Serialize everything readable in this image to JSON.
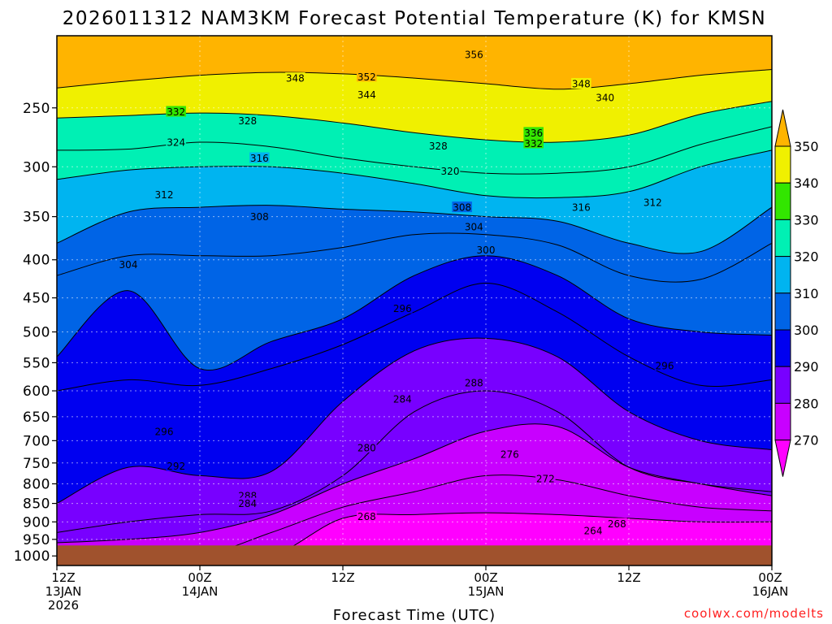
{
  "chart_data": {
    "type": "heatmap",
    "title": "2026011312 NAM3KM Forecast Potential Temperature (K) for KMSN",
    "xlabel": "Forecast Time (UTC)",
    "ylabel": "",
    "x_ticks": [
      {
        "hours": 0,
        "lines": [
          "12Z",
          "13JAN",
          "2026"
        ]
      },
      {
        "hours": 12,
        "lines": [
          "00Z",
          "14JAN"
        ]
      },
      {
        "hours": 24,
        "lines": [
          "12Z"
        ]
      },
      {
        "hours": 36,
        "lines": [
          "00Z",
          "15JAN"
        ]
      },
      {
        "hours": 48,
        "lines": [
          "12Z"
        ]
      },
      {
        "hours": 60,
        "lines": [
          "00Z",
          "16JAN"
        ]
      }
    ],
    "xlim_hours": [
      0,
      60
    ],
    "y_ticks": [
      250,
      300,
      350,
      400,
      450,
      500,
      550,
      600,
      650,
      700,
      750,
      800,
      850,
      900,
      950,
      1000
    ],
    "ylim_hpa": [
      200,
      1030
    ],
    "y_scale": "log-pressure",
    "terrain_surface_hpa": 968,
    "grid": true,
    "colorbar": {
      "levels": [
        "270",
        "280",
        "290",
        "300",
        "310",
        "320",
        "330",
        "340",
        "350"
      ],
      "colors": [
        "#ff00ff",
        "#c800ff",
        "#7800ff",
        "#0000f0",
        "#0064e6",
        "#00b4f0",
        "#00f0b4",
        "#32e600",
        "#f0f000",
        "#ffb400"
      ]
    },
    "isentropes": [
      {
        "theta": 348,
        "p": [
          235,
          230,
          226,
          224,
          225,
          228,
          232,
          236,
          232,
          226,
          222
        ]
      },
      {
        "theta": 332,
        "p": [
          258,
          256,
          254,
          256,
          262,
          270,
          276,
          278,
          272,
          255,
          245
        ]
      },
      {
        "theta": 324,
        "p": [
          285,
          284,
          278,
          282,
          292,
          300,
          306,
          306,
          300,
          280,
          265
        ]
      },
      {
        "theta": 316,
        "p": [
          312,
          303,
          300,
          300,
          306,
          316,
          328,
          330,
          324,
          300,
          285
        ]
      },
      {
        "theta": 308,
        "p": [
          380,
          345,
          340,
          338,
          342,
          345,
          350,
          355,
          380,
          390,
          340
        ]
      },
      {
        "theta": 304,
        "p": [
          420,
          395,
          395,
          395,
          385,
          370,
          370,
          382,
          420,
          425,
          380
        ]
      },
      {
        "theta": 300,
        "p": [
          540,
          440,
          560,
          515,
          480,
          420,
          395,
          420,
          480,
          500,
          505
        ]
      },
      {
        "theta": 296,
        "p": [
          600,
          580,
          590,
          560,
          520,
          470,
          430,
          470,
          540,
          590,
          580
        ]
      },
      {
        "theta": 290,
        "p": [
          850,
          760,
          780,
          770,
          620,
          530,
          510,
          540,
          640,
          700,
          720
        ]
      },
      {
        "theta": 284,
        "p": [
          930,
          900,
          880,
          870,
          780,
          640,
          600,
          640,
          760,
          800,
          820
        ]
      },
      {
        "theta": 280,
        "p": [
          960,
          950,
          930,
          880,
          800,
          740,
          680,
          670,
          760,
          800,
          830
        ]
      },
      {
        "theta": 272,
        "p": [
          1000,
          1000,
          1000,
          930,
          860,
          820,
          780,
          790,
          830,
          860,
          870
        ]
      },
      {
        "theta": 268,
        "p": [
          1000,
          1000,
          1000,
          1000,
          890,
          880,
          875,
          880,
          890,
          900,
          900
        ]
      }
    ],
    "contour_labels": [
      {
        "text": "356",
        "hours": 35,
        "p": 212
      },
      {
        "text": "348",
        "hours": 20,
        "p": 228
      },
      {
        "text": "352",
        "hours": 26,
        "p": 227
      },
      {
        "text": "348",
        "hours": 44,
        "p": 232
      },
      {
        "text": "344",
        "hours": 26,
        "p": 240
      },
      {
        "text": "340",
        "hours": 46,
        "p": 242
      },
      {
        "text": "332",
        "hours": 10,
        "p": 253
      },
      {
        "text": "328",
        "hours": 16,
        "p": 260
      },
      {
        "text": "336",
        "hours": 40,
        "p": 270
      },
      {
        "text": "332",
        "hours": 40,
        "p": 279
      },
      {
        "text": "324",
        "hours": 10,
        "p": 278
      },
      {
        "text": "328",
        "hours": 32,
        "p": 281
      },
      {
        "text": "316",
        "hours": 17,
        "p": 292
      },
      {
        "text": "320",
        "hours": 33,
        "p": 304
      },
      {
        "text": "312",
        "hours": 9,
        "p": 327
      },
      {
        "text": "308",
        "hours": 17,
        "p": 350
      },
      {
        "text": "308",
        "hours": 34,
        "p": 340
      },
      {
        "text": "316",
        "hours": 44,
        "p": 340
      },
      {
        "text": "312",
        "hours": 50,
        "p": 335
      },
      {
        "text": "304",
        "hours": 35,
        "p": 361
      },
      {
        "text": "304",
        "hours": 6,
        "p": 406
      },
      {
        "text": "300",
        "hours": 36,
        "p": 388
      },
      {
        "text": "296",
        "hours": 29,
        "p": 465
      },
      {
        "text": "296",
        "hours": 51,
        "p": 555
      },
      {
        "text": "284",
        "hours": 29,
        "p": 615
      },
      {
        "text": "288",
        "hours": 35,
        "p": 585
      },
      {
        "text": "296",
        "hours": 9,
        "p": 680
      },
      {
        "text": "280",
        "hours": 26,
        "p": 715
      },
      {
        "text": "276",
        "hours": 38,
        "p": 730
      },
      {
        "text": "292",
        "hours": 10,
        "p": 757
      },
      {
        "text": "272",
        "hours": 41,
        "p": 787
      },
      {
        "text": "288",
        "hours": 16,
        "p": 830
      },
      {
        "text": "284",
        "hours": 16,
        "p": 850
      },
      {
        "text": "268",
        "hours": 26,
        "p": 885
      },
      {
        "text": "268",
        "hours": 47,
        "p": 905
      },
      {
        "text": "264",
        "hours": 45,
        "p": 925
      }
    ]
  },
  "credit": "coolwx.com/modelts"
}
